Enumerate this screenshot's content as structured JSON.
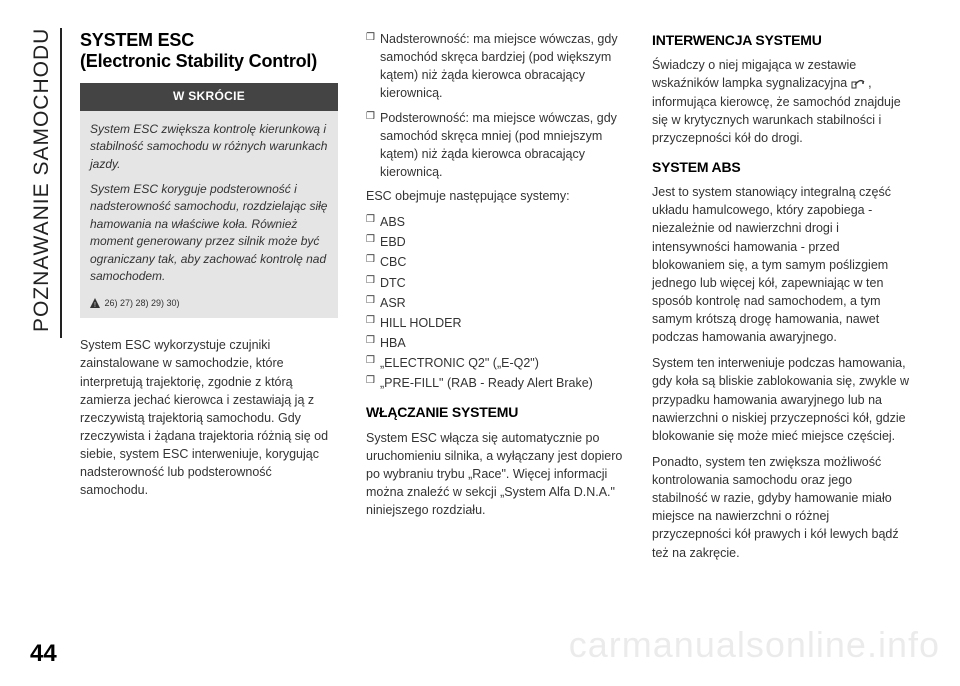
{
  "side_label": "POZNAWANIE SAMOCHODU",
  "page_number": "44",
  "watermark": "carmanualsonline.info",
  "col1": {
    "title": "SYSTEM ESC\n(Electronic Stability Control)",
    "brief_header": "W SKRÓCIE",
    "brief_p1": "System ESC zwiększa kontrolę kierunkową i stabilność samochodu w różnych warunkach jazdy.",
    "brief_p2": "System ESC koryguje podsterowność i nadsterowność samochodu, rozdzielając siłę hamowania na właściwe koła. Również moment generowany przez silnik może być ograniczany tak, aby zachować kontrolę nad samochodem.",
    "brief_ref": "26) 27) 28) 29) 30)",
    "p1": "System ESC wykorzystuje czujniki zainstalowane w samochodzie, które interpretują trajektorię, zgodnie z którą zamierza jechać kierowca i zestawiają ją z rzeczywistą trajektorią samochodu. Gdy rzeczywista i żądana trajektoria różnią się od siebie, system ESC interweniuje, korygując nadsterowność lub podsterowność samochodu."
  },
  "col2": {
    "nad": "Nadsterowność: ma miejsce wówczas, gdy samochód skręca bardziej (pod większym kątem) niż żąda kierowca obracający kierownicą.",
    "pod": "Podsterowność: ma miejsce wówczas, gdy samochód skręca mniej (pod mniejszym kątem) niż żąda kierowca obracający kierownicą.",
    "p_intro": "ESC obejmuje następujące systemy:",
    "items": [
      "ABS",
      "EBD",
      "CBC",
      "DTC",
      "ASR",
      "HILL HOLDER",
      "HBA",
      "„ELECTRONIC Q2\" („E-Q2\")",
      "„PRE-FILL\" (RAB - Ready Alert Brake)"
    ],
    "h_on": "WŁĄCZANIE SYSTEMU",
    "p_on": "System ESC włącza się automatycznie po uruchomieniu silnika, a wyłączany jest dopiero po wybraniu trybu „Race\". Więcej informacji można znaleźć w sekcji „System Alfa D.N.A.\" niniejszego rozdziału."
  },
  "col3": {
    "h_int": "INTERWENCJA SYSTEMU",
    "p_int": "Świadczy o niej migająca w zestawie wskaźników lampka sygnalizacyjna {icon} , informująca kierowcę, że samochód znajduje się w krytycznych warunkach stabilności i przyczepności kół do drogi.",
    "h_abs": "SYSTEM ABS",
    "p_abs1": "Jest to system stanowiący integralną część układu hamulcowego, który zapobiega - niezależnie od nawierzchni drogi i intensywności hamowania - przed blokowaniem się, a tym samym poślizgiem jednego lub więcej kół, zapewniając w ten sposób kontrolę nad samochodem, a tym samym krótszą drogę hamowania, nawet podczas hamowania awaryjnego.",
    "p_abs2": "System ten interweniuje podczas hamowania, gdy koła są bliskie zablokowania się, zwykle w przypadku hamowania awaryjnego lub na nawierzchni o niskiej przyczepności kół, gdzie blokowanie się może mieć miejsce częściej.",
    "p_abs3": "Ponadto, system ten zwiększa możliwość kontrolowania samochodu oraz jego stabilność w razie, gdyby hamowanie miało miejsce na nawierzchni o różnej przyczepności kół prawych i kół lewych bądź też na zakręcie."
  }
}
